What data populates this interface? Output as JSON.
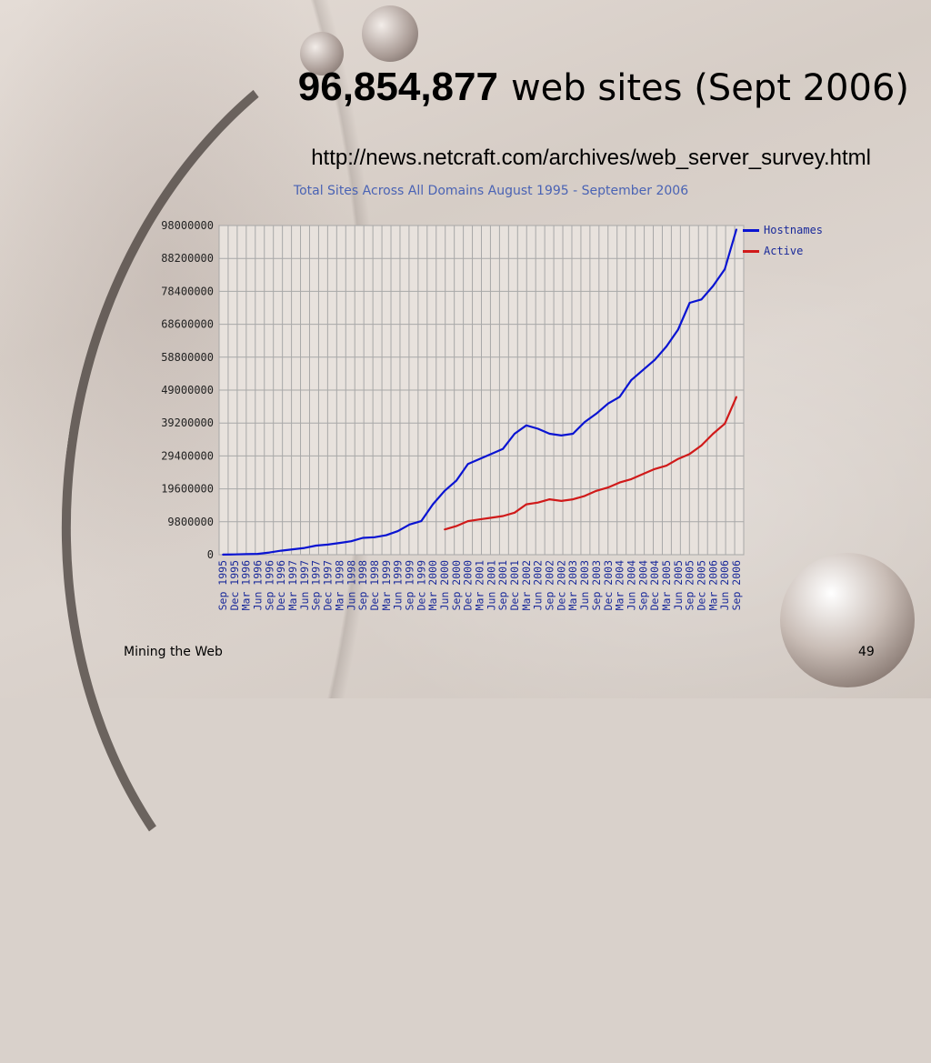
{
  "slide": {
    "title_number": "96,854,877",
    "title_rest": "web sites (Sept 2006)",
    "url": "http://news.netcraft.com/archives/web_server_survey.html",
    "footer_left": "Mining the Web",
    "page_number": "49"
  },
  "chart_data": {
    "type": "line",
    "title": "Total Sites Across All Domains August 1995 - September 2006",
    "ylim": [
      0,
      98000000
    ],
    "yticks": [
      "0",
      "9800000",
      "19600000",
      "29400000",
      "39200000",
      "49000000",
      "58800000",
      "68600000",
      "78400000",
      "88200000",
      "98000000"
    ],
    "x": [
      "Sep 1995",
      "Dec 1995",
      "Mar 1996",
      "Jun 1996",
      "Sep 1996",
      "Dec 1996",
      "Mar 1997",
      "Jun 1997",
      "Sep 1997",
      "Dec 1997",
      "Mar 1998",
      "Jun 1998",
      "Sep 1998",
      "Dec 1998",
      "Mar 1999",
      "Jun 1999",
      "Sep 1999",
      "Dec 1999",
      "Mar 2000",
      "Jun 2000",
      "Sep 2000",
      "Dec 2000",
      "Mar 2001",
      "Jun 2001",
      "Sep 2001",
      "Dec 2001",
      "Mar 2002",
      "Jun 2002",
      "Sep 2002",
      "Dec 2002",
      "Mar 2003",
      "Jun 2003",
      "Sep 2003",
      "Dec 2003",
      "Mar 2004",
      "Jun 2004",
      "Sep 2004",
      "Dec 2004",
      "Mar 2005",
      "Jun 2005",
      "Sep 2005",
      "Dec 2005",
      "Mar 2006",
      "Jun 2006",
      "Sep 2006"
    ],
    "grid": true,
    "legend_position": "top-right",
    "series": [
      {
        "name": "Hostnames",
        "color": "#0a14d2",
        "values": [
          20000,
          74000,
          150000,
          250000,
          650000,
          1200000,
          1600000,
          2000000,
          2700000,
          3000000,
          3500000,
          4000000,
          5000000,
          5200000,
          5800000,
          7000000,
          9000000,
          10000000,
          15000000,
          19000000,
          22000000,
          27000000,
          28500000,
          30000000,
          31500000,
          36000000,
          38500000,
          37500000,
          36000000,
          35500000,
          36000000,
          39500000,
          42000000,
          45000000,
          47000000,
          52000000,
          55000000,
          58000000,
          62000000,
          67000000,
          75000000,
          76000000,
          80000000,
          85000000,
          96854877
        ]
      },
      {
        "name": "Active",
        "color": "#d01a1a",
        "values": [
          null,
          null,
          null,
          null,
          null,
          null,
          null,
          null,
          null,
          null,
          null,
          null,
          null,
          null,
          null,
          null,
          null,
          null,
          null,
          7500000,
          8500000,
          10000000,
          10500000,
          11000000,
          11500000,
          12500000,
          15000000,
          15500000,
          16500000,
          16000000,
          16500000,
          17500000,
          19000000,
          20000000,
          21500000,
          22500000,
          24000000,
          25500000,
          26500000,
          28500000,
          30000000,
          32500000,
          36000000,
          39000000,
          47000000
        ]
      }
    ]
  }
}
